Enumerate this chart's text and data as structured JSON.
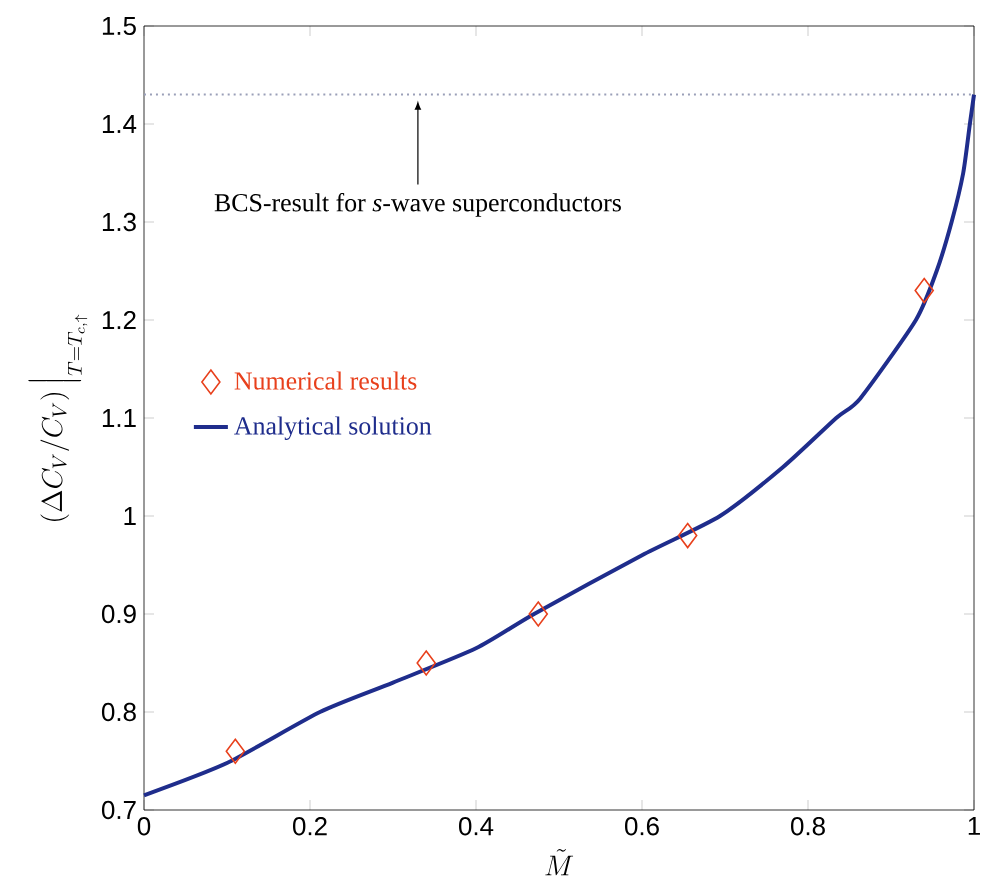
{
  "chart_data": {
    "type": "line",
    "xlabel": "\\tilde{M}",
    "ylabel": "\\left(\\Delta C_V/C_V\\right)\\Big|_{T=T_{c,\\uparrow}}",
    "series": [
      {
        "name": "Numerical results",
        "type": "scatter",
        "marker": "diamond",
        "color": "#e8401c",
        "x": [
          0.11,
          0.34,
          0.475,
          0.655,
          0.94
        ],
        "values": [
          0.76,
          0.85,
          0.9,
          0.98,
          1.23
        ]
      },
      {
        "name": "Analytical solution",
        "marker": "none",
        "line_style": "solid",
        "color": "#1f2d8c",
        "x": [
          0,
          0.1,
          0.212,
          0.3,
          0.4,
          0.47,
          0.6,
          0.694,
          0.77,
          0.834,
          0.863,
          0.93,
          0.955,
          0.973,
          0.987,
          0.995,
          1.0
        ],
        "values": [
          0.715,
          0.748,
          0.8,
          0.83,
          0.865,
          0.9,
          0.96,
          1.0,
          1.05,
          1.1,
          1.12,
          1.2,
          1.25,
          1.3,
          1.35,
          1.4,
          1.43
        ]
      }
    ],
    "ref_lines": [
      {
        "axis": "y",
        "value": 1.43,
        "label": "BCS-result for *s*-wave superconductors",
        "color": "#9a9fb8",
        "line_style": "dotted"
      }
    ],
    "xlim": [
      0,
      1
    ],
    "ylim": [
      0.7,
      1.5
    ],
    "xticks": [
      0,
      0.2,
      0.4,
      0.6,
      0.8,
      1
    ],
    "yticks": [
      0.7,
      0.8,
      0.9,
      1,
      1.1,
      1.2,
      1.3,
      1.4,
      1.5
    ],
    "grid": false,
    "legend": "left"
  }
}
